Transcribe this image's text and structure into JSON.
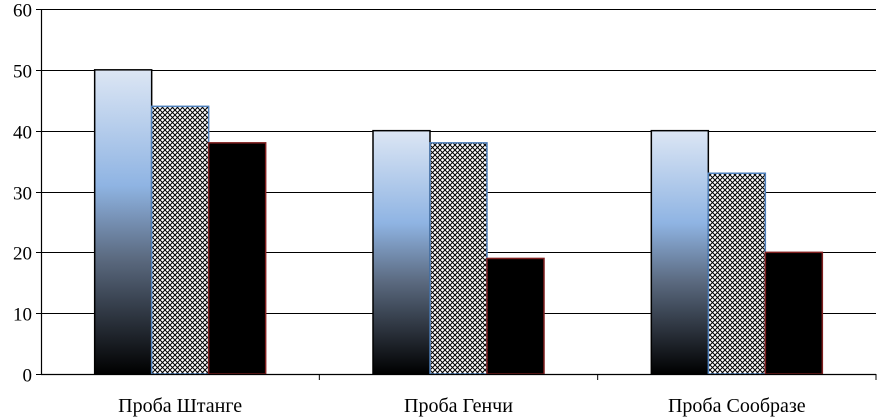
{
  "chart_data": {
    "type": "bar",
    "title": "",
    "xlabel": "",
    "ylabel": "",
    "categories": [
      "Проба Штанге",
      "Проба Генчи",
      "Проба Сообразе"
    ],
    "series": [
      {
        "values": [
          50,
          40,
          40
        ],
        "fill": "gradient",
        "stroke": "#000000"
      },
      {
        "values": [
          44,
          38,
          33
        ],
        "fill": "hatch",
        "stroke": "#4f81bd"
      },
      {
        "values": [
          38,
          19,
          20
        ],
        "fill": "#000000",
        "stroke": "#7f1f1f"
      }
    ],
    "ylim": [
      0,
      60
    ],
    "yticks": [
      0,
      10,
      20,
      30,
      40,
      50,
      60
    ],
    "grid": true,
    "legend": "none",
    "colors": {
      "gradient_top": "#dce6f4",
      "gradient_mid": "#8fb4e3",
      "gradient_bottom": "#000000",
      "hatch_line": "#000000",
      "hatch_bg": "#ffffff",
      "solid": "#000000"
    }
  }
}
